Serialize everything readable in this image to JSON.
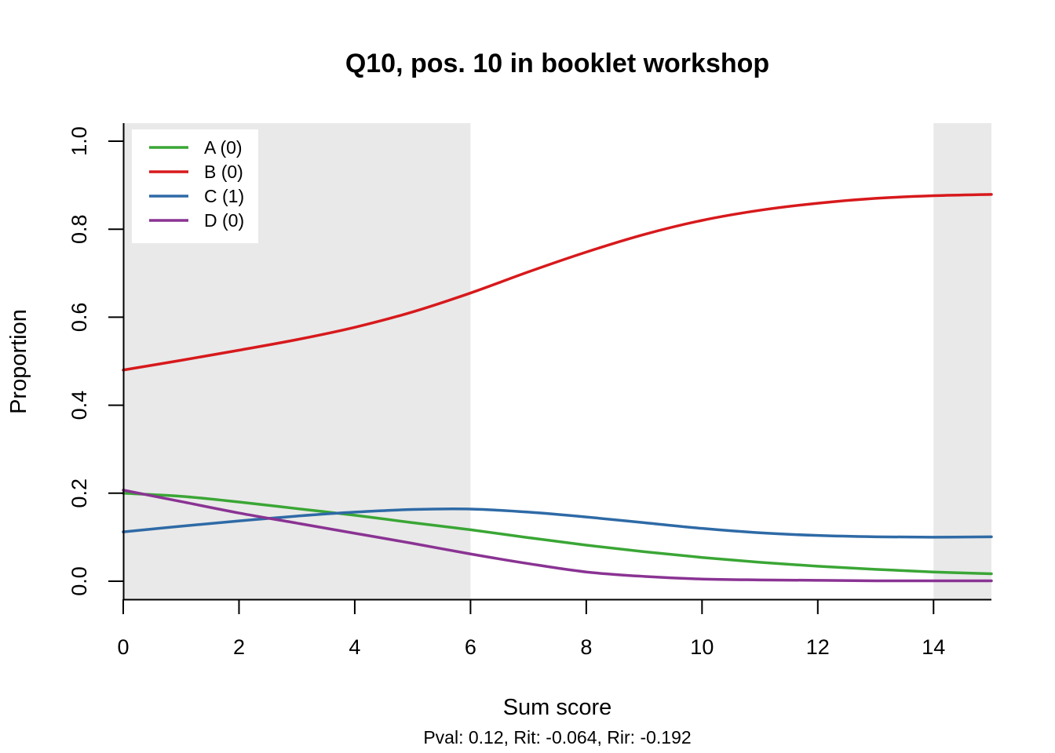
{
  "chart_data": {
    "type": "line",
    "title": "Q10, pos. 10 in booklet workshop",
    "xlabel": "Sum score",
    "ylabel": "Proportion",
    "subtitle": "Pval: 0.12, Rit: -0.064, Rir: -0.192",
    "xlim": [
      0,
      15
    ],
    "ylim": [
      0,
      1
    ],
    "xticks": [
      0,
      2,
      4,
      6,
      8,
      10,
      12,
      14
    ],
    "yticks": [
      0.0,
      0.2,
      0.4,
      0.6,
      0.8,
      1.0
    ],
    "ytick_labels": [
      "0.0",
      "0.2",
      "0.4",
      "0.6",
      "0.8",
      "1.0"
    ],
    "shaded_ranges": [
      [
        0,
        6
      ],
      [
        14,
        15
      ]
    ],
    "shade_color": "#e9e9e9",
    "legend_position": "top-left",
    "grid": false,
    "x": [
      0,
      1,
      2,
      3,
      4,
      5,
      6,
      7,
      8,
      9,
      10,
      11,
      12,
      13,
      14,
      15
    ],
    "series": [
      {
        "name": "A (0)",
        "color": "#3aa635",
        "values": [
          0.2,
          0.193,
          0.18,
          0.165,
          0.15,
          0.133,
          0.117,
          0.099,
          0.082,
          0.067,
          0.054,
          0.043,
          0.034,
          0.027,
          0.021,
          0.017
        ]
      },
      {
        "name": "B (0)",
        "color": "#d7191c",
        "values": [
          0.48,
          0.502,
          0.525,
          0.549,
          0.577,
          0.612,
          0.655,
          0.703,
          0.748,
          0.788,
          0.82,
          0.843,
          0.859,
          0.87,
          0.876,
          0.879
        ]
      },
      {
        "name": "C (1)",
        "color": "#2e6aa6",
        "values": [
          0.112,
          0.125,
          0.137,
          0.148,
          0.157,
          0.163,
          0.164,
          0.157,
          0.146,
          0.133,
          0.12,
          0.11,
          0.104,
          0.101,
          0.1,
          0.101
        ]
      },
      {
        "name": "D (0)",
        "color": "#8a3393",
        "values": [
          0.207,
          0.181,
          0.155,
          0.132,
          0.109,
          0.086,
          0.062,
          0.04,
          0.021,
          0.011,
          0.005,
          0.003,
          0.002,
          0.001,
          0.001,
          0.001
        ]
      }
    ]
  }
}
